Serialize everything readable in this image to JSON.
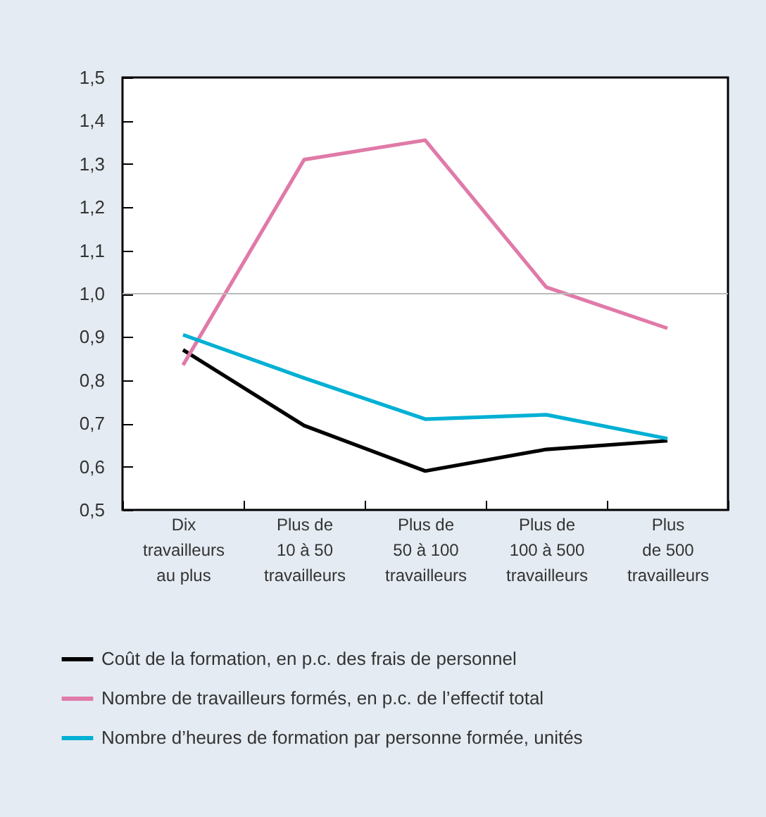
{
  "chart_data": {
    "type": "line",
    "categories": [
      "Dix\ntravailleurs\nau plus",
      "Plus de\n10 à 50\ntravailleurs",
      "Plus de\n50 à 100\ntravailleurs",
      "Plus de\n100 à 500\ntravailleurs",
      "Plus\nde 500\ntravailleurs"
    ],
    "series": [
      {
        "name": "Coût de la formation, en p.c. des frais de personnel",
        "color": "#000000",
        "values": [
          0.87,
          0.695,
          0.59,
          0.64,
          0.66
        ]
      },
      {
        "name": "Nombre de travailleurs formés, en p.c. de l’effectif total",
        "color": "#e07aa8",
        "values": [
          0.835,
          1.31,
          1.355,
          1.015,
          0.92
        ]
      },
      {
        "name": "Nombre d’heures de formation par personne formée, unités",
        "color": "#00b0d4",
        "values": [
          0.905,
          0.805,
          0.71,
          0.72,
          0.665
        ]
      }
    ],
    "ylim": [
      0.5,
      1.5
    ],
    "yticks": [
      {
        "value": 0.5,
        "label": "0,5"
      },
      {
        "value": 0.6,
        "label": "0,6"
      },
      {
        "value": 0.7,
        "label": "0,7"
      },
      {
        "value": 0.8,
        "label": "0,8"
      },
      {
        "value": 0.9,
        "label": "0,9"
      },
      {
        "value": 1.0,
        "label": "1,0"
      },
      {
        "value": 1.1,
        "label": "1,1"
      },
      {
        "value": 1.2,
        "label": "1,2"
      },
      {
        "value": 1.3,
        "label": "1,3"
      },
      {
        "value": 1.4,
        "label": "1,4"
      },
      {
        "value": 1.5,
        "label": "1,5"
      }
    ],
    "ref_lines": [
      {
        "axis": "y",
        "value": 1.0,
        "color": "#bbbbbb"
      }
    ],
    "legend": "bottom",
    "grid": false,
    "marker": "none",
    "line_style": "solid"
  }
}
